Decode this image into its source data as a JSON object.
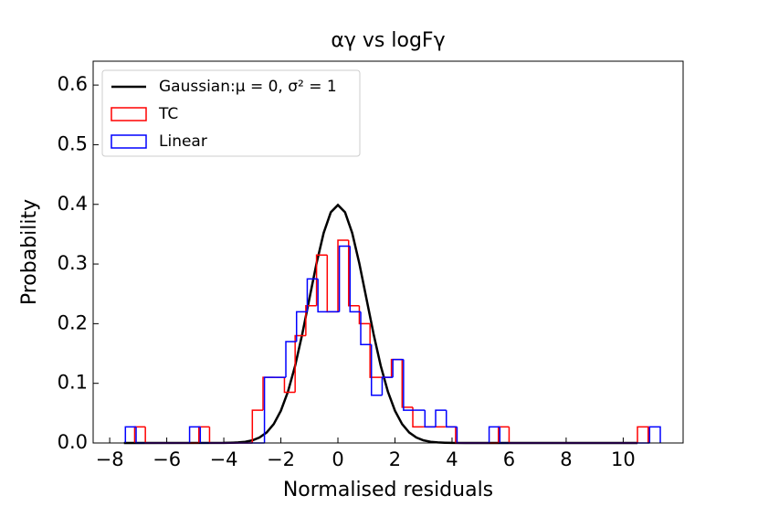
{
  "chart_data": {
    "type": "histogram",
    "title": "αγ vs logFγ",
    "x_label": "Normalised residuals",
    "y_label": "Probability",
    "xlim": [
      -8.58,
      12.1
    ],
    "ylim": [
      0,
      0.64
    ],
    "xticks": [
      {
        "value": -8,
        "label": "−8"
      },
      {
        "value": -6,
        "label": "−6"
      },
      {
        "value": -4,
        "label": "−4"
      },
      {
        "value": -2,
        "label": "−2"
      },
      0,
      2,
      4,
      6,
      8,
      10
    ],
    "yticks": [
      {
        "value": 0,
        "label": "0.0"
      },
      0.1,
      0.2,
      0.3,
      0.4,
      0.5,
      0.6
    ],
    "legend": "upper left",
    "series": [
      {
        "name": "Gaussian:μ = 0, σ² = 1",
        "type": "line",
        "color": "#000000",
        "x": [
          -7.5,
          -4,
          -3.75,
          -3.5,
          -3.25,
          -3,
          -2.75,
          -2.5,
          -2.25,
          -2,
          -1.75,
          -1.5,
          -1.25,
          -1,
          -0.75,
          -0.5,
          -0.25,
          0,
          0.25,
          0.5,
          0.75,
          1,
          1.25,
          1.5,
          1.75,
          2,
          2.25,
          2.5,
          2.75,
          3,
          3.25,
          3.5,
          3.75,
          4,
          10.5
        ],
        "values": [
          0,
          0.0001,
          0.0004,
          0.0009,
          0.002,
          0.0044,
          0.0091,
          0.0175,
          0.0317,
          0.054,
          0.0863,
          0.1295,
          0.1826,
          0.242,
          0.3011,
          0.3521,
          0.3867,
          0.3989,
          0.3867,
          0.3521,
          0.3011,
          0.242,
          0.1826,
          0.1295,
          0.0863,
          0.054,
          0.0317,
          0.0175,
          0.0091,
          0.0044,
          0.002,
          0.0009,
          0.0004,
          0.0001,
          0
        ]
      },
      {
        "name": "TC",
        "type": "step",
        "color": "#ff0000",
        "bins": [
          -7.125,
          -6.75,
          -6.375,
          -6,
          -5.625,
          -5.25,
          -4.875,
          -4.5,
          -4.125,
          -3.75,
          -3.375,
          -3,
          -2.625,
          -2.25,
          -1.875,
          -1.5,
          -1.125,
          -0.75,
          -0.375,
          0,
          0.375,
          0.75,
          1.125,
          1.5,
          1.875,
          2.25,
          2.625,
          3,
          3.375,
          3.75,
          4.125,
          4.5,
          4.875,
          5.25,
          5.625,
          6,
          6.375,
          6.75,
          7.125,
          7.5,
          7.875,
          8.25,
          8.625,
          9,
          9.375,
          9.75,
          10.125,
          10.5,
          10.875
        ],
        "values": [
          0.027,
          0,
          0,
          0,
          0,
          0,
          0.027,
          0,
          0,
          0,
          0,
          0.055,
          0.11,
          0.11,
          0.085,
          0.18,
          0.23,
          0.315,
          0.22,
          0.34,
          0.23,
          0.2,
          0.11,
          0.11,
          0.14,
          0.06,
          0.027,
          0.027,
          0.027,
          0.027,
          0,
          0,
          0,
          0,
          0.027,
          0,
          0,
          0,
          0,
          0,
          0,
          0,
          0,
          0,
          0,
          0,
          0,
          0.027
        ]
      },
      {
        "name": "Linear",
        "type": "step",
        "color": "#0000ff",
        "bins": [
          -7.45,
          -7.075,
          -6.7,
          -6.325,
          -5.95,
          -5.575,
          -5.2,
          -4.825,
          -4.45,
          -4.075,
          -3.7,
          -3.325,
          -2.95,
          -2.575,
          -2.2,
          -1.825,
          -1.45,
          -1.075,
          -0.7,
          -0.325,
          0.05,
          0.425,
          0.8,
          1.175,
          1.55,
          1.925,
          2.3,
          2.675,
          3.05,
          3.425,
          3.8,
          4.175,
          4.55,
          4.925,
          5.3,
          5.675,
          6.05,
          6.425,
          6.8,
          7.175,
          7.55,
          7.925,
          8.3,
          8.675,
          9.05,
          9.425,
          9.8,
          10.175,
          10.55,
          10.925,
          11.3
        ],
        "values": [
          0.027,
          0,
          0,
          0,
          0,
          0,
          0.027,
          0,
          0,
          0,
          0,
          0,
          0,
          0.11,
          0.11,
          0.17,
          0.22,
          0.275,
          0.22,
          0.22,
          0.33,
          0.22,
          0.165,
          0.08,
          0.11,
          0.14,
          0.055,
          0.055,
          0.027,
          0.055,
          0.027,
          0,
          0,
          0,
          0.027,
          0,
          0,
          0,
          0,
          0,
          0,
          0,
          0,
          0,
          0,
          0,
          0,
          0,
          0,
          0.027
        ]
      }
    ]
  }
}
